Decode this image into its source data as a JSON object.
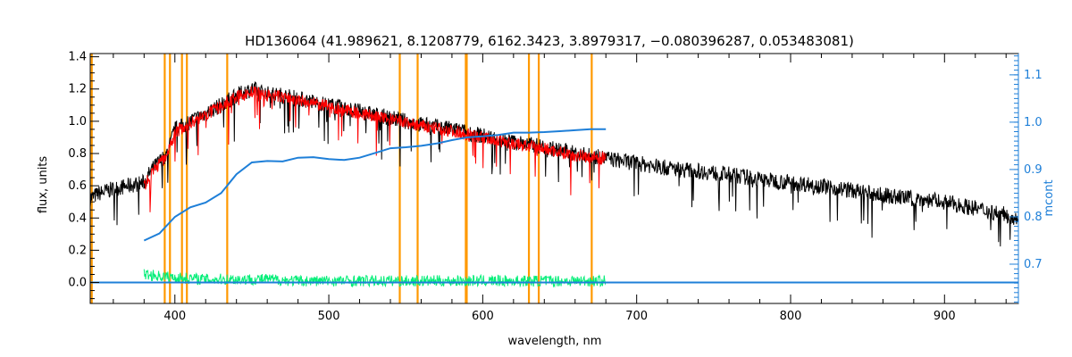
{
  "chart_data": {
    "type": "line",
    "title": "HD136064    (41.989621, 8.1208779, 6162.3423, 3.8979317, −0.080396287, 0.053483081)",
    "xlabel": "wavelength, nm",
    "ylabel": "flux, units",
    "y2label": "mcont",
    "xlim": [
      345,
      948
    ],
    "ylim": [
      -0.13,
      1.42
    ],
    "y2lim": [
      0.617,
      1.145
    ],
    "x_ticks": [
      400,
      500,
      600,
      700,
      800,
      900
    ],
    "y_ticks": [
      0.0,
      0.2,
      0.4,
      0.6,
      0.8,
      1.0,
      1.2,
      1.4
    ],
    "y2_ticks": [
      0.7,
      0.8,
      0.9,
      1.0,
      1.1
    ],
    "x_tick_labels": [
      "400",
      "500",
      "600",
      "700",
      "800",
      "900"
    ],
    "y_tick_labels": [
      "0.0",
      "0.2",
      "0.4",
      "0.6",
      "0.8",
      "1.0",
      "1.2",
      "1.4"
    ],
    "y2_tick_labels": [
      "0.7",
      "0.8",
      "0.9",
      "1.0",
      "1.1"
    ],
    "marker_lines": [
      344,
      346,
      393.4,
      396.8,
      404.6,
      407.8,
      434.0,
      546.1,
      557.7,
      589.0,
      589.6,
      630.0,
      636.4,
      670.8
    ],
    "series": [
      {
        "role": "observed",
        "color": "#000000",
        "x": [
          345,
          350,
          360,
          370,
          380,
          385,
          390,
          395,
          400,
          405,
          410,
          420,
          430,
          440,
          450,
          460,
          470,
          480,
          490,
          500,
          520,
          540,
          560,
          580,
          600,
          620,
          640,
          660,
          680,
          700,
          720,
          740,
          760,
          780,
          800,
          820,
          840,
          860,
          880,
          900,
          920,
          940,
          948
        ],
        "y": [
          0.52,
          0.55,
          0.58,
          0.6,
          0.62,
          0.7,
          0.75,
          0.8,
          0.95,
          0.97,
          1.0,
          1.05,
          1.1,
          1.16,
          1.2,
          1.17,
          1.16,
          1.14,
          1.12,
          1.1,
          1.06,
          1.02,
          0.98,
          0.95,
          0.91,
          0.87,
          0.84,
          0.8,
          0.77,
          0.74,
          0.71,
          0.69,
          0.67,
          0.64,
          0.62,
          0.6,
          0.57,
          0.54,
          0.52,
          0.5,
          0.46,
          0.42,
          0.4
        ]
      },
      {
        "role": "model",
        "color": "#ff0000",
        "x": [
          380,
          385,
          390,
          395,
          400,
          405,
          410,
          420,
          430,
          440,
          450,
          460,
          470,
          480,
          490,
          500,
          520,
          540,
          560,
          580,
          600,
          620,
          640,
          660,
          680
        ],
        "y": [
          0.6,
          0.68,
          0.74,
          0.78,
          0.93,
          0.96,
          0.99,
          1.04,
          1.09,
          1.15,
          1.18,
          1.16,
          1.15,
          1.13,
          1.11,
          1.09,
          1.05,
          1.01,
          0.97,
          0.94,
          0.9,
          0.86,
          0.83,
          0.79,
          0.77
        ]
      },
      {
        "role": "residuals",
        "color": "#00ee77",
        "x": [
          380,
          400,
          420,
          440,
          460,
          480,
          500,
          520,
          540,
          560,
          580,
          600,
          620,
          640,
          660,
          680
        ],
        "y": [
          0.05,
          0.03,
          0.02,
          0.02,
          0.02,
          0.01,
          0.01,
          0.01,
          0.01,
          0.01,
          0.01,
          0.01,
          0.01,
          0.01,
          0.01,
          0.01
        ]
      },
      {
        "role": "baseline",
        "color": "#1e7fd8",
        "x": [
          345,
          948
        ],
        "y": [
          0.0,
          0.0
        ]
      },
      {
        "role": "mcont",
        "color": "#1e7fd8",
        "axis": "right",
        "x": [
          380,
          390,
          400,
          410,
          420,
          430,
          440,
          450,
          460,
          470,
          480,
          490,
          500,
          510,
          520,
          530,
          540,
          550,
          560,
          570,
          580,
          590,
          600,
          610,
          620,
          630,
          640,
          650,
          660,
          670,
          680
        ],
        "y": [
          0.75,
          0.765,
          0.8,
          0.82,
          0.83,
          0.85,
          0.89,
          0.915,
          0.918,
          0.917,
          0.925,
          0.926,
          0.922,
          0.92,
          0.925,
          0.935,
          0.945,
          0.947,
          0.95,
          0.955,
          0.962,
          0.968,
          0.97,
          0.973,
          0.978,
          0.978,
          0.979,
          0.981,
          0.983,
          0.985,
          0.985
        ]
      }
    ]
  },
  "colors": {
    "axis": "#000000",
    "right_axis": "#1e7fd8",
    "markers": "#ff9900"
  }
}
